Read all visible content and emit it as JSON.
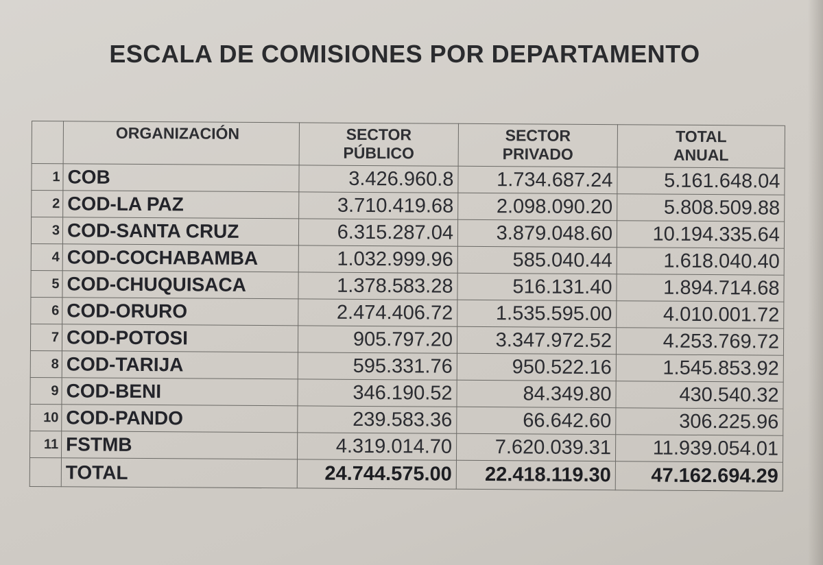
{
  "document": {
    "title": "ESCALA DE COMISIONES POR DEPARTAMENTO",
    "columns": {
      "organization": "ORGANIZACIÓN",
      "public_line1": "SECTOR",
      "public_line2": "PÚBLICO",
      "private_line1": "SECTOR",
      "private_line2": "PRIVADO",
      "total_line1": "TOTAL",
      "total_line2": "ANUAL"
    },
    "rows": [
      {
        "n": "1",
        "org": "COB",
        "public": "3.426.960.8",
        "private": "1.734.687.24",
        "total": "5.161.648.04"
      },
      {
        "n": "2",
        "org": "COD-LA PAZ",
        "public": "3.710.419.68",
        "private": "2.098.090.20",
        "total": "5.808.509.88"
      },
      {
        "n": "3",
        "org": "COD-SANTA CRUZ",
        "public": "6.315.287.04",
        "private": "3.879.048.60",
        "total": "10.194.335.64"
      },
      {
        "n": "4",
        "org": "COD-COCHABAMBA",
        "public": "1.032.999.96",
        "private": "585.040.44",
        "total": "1.618.040.40"
      },
      {
        "n": "5",
        "org": "COD-CHUQUISACA",
        "public": "1.378.583.28",
        "private": "516.131.40",
        "total": "1.894.714.68"
      },
      {
        "n": "6",
        "org": "COD-ORURO",
        "public": "2.474.406.72",
        "private": "1.535.595.00",
        "total": "4.010.001.72"
      },
      {
        "n": "7",
        "org": "COD-POTOSI",
        "public": "905.797.20",
        "private": "3.347.972.52",
        "total": "4.253.769.72"
      },
      {
        "n": "8",
        "org": "COD-TARIJA",
        "public": "595.331.76",
        "private": "950.522.16",
        "total": "1.545.853.92"
      },
      {
        "n": "9",
        "org": "COD-BENI",
        "public": "346.190.52",
        "private": "84.349.80",
        "total": "430.540.32"
      },
      {
        "n": "10",
        "org": "COD-PANDO",
        "public": "239.583.36",
        "private": "66.642.60",
        "total": "306.225.96"
      },
      {
        "n": "11",
        "org": "FSTMB",
        "public": "4.319.014.70",
        "private": "7.620.039.31",
        "total": "11.939.054.01"
      }
    ],
    "total_row": {
      "label": "TOTAL",
      "public": "24.744.575.00",
      "private": "22.418.119.30",
      "total": "47.162.694.29"
    }
  }
}
